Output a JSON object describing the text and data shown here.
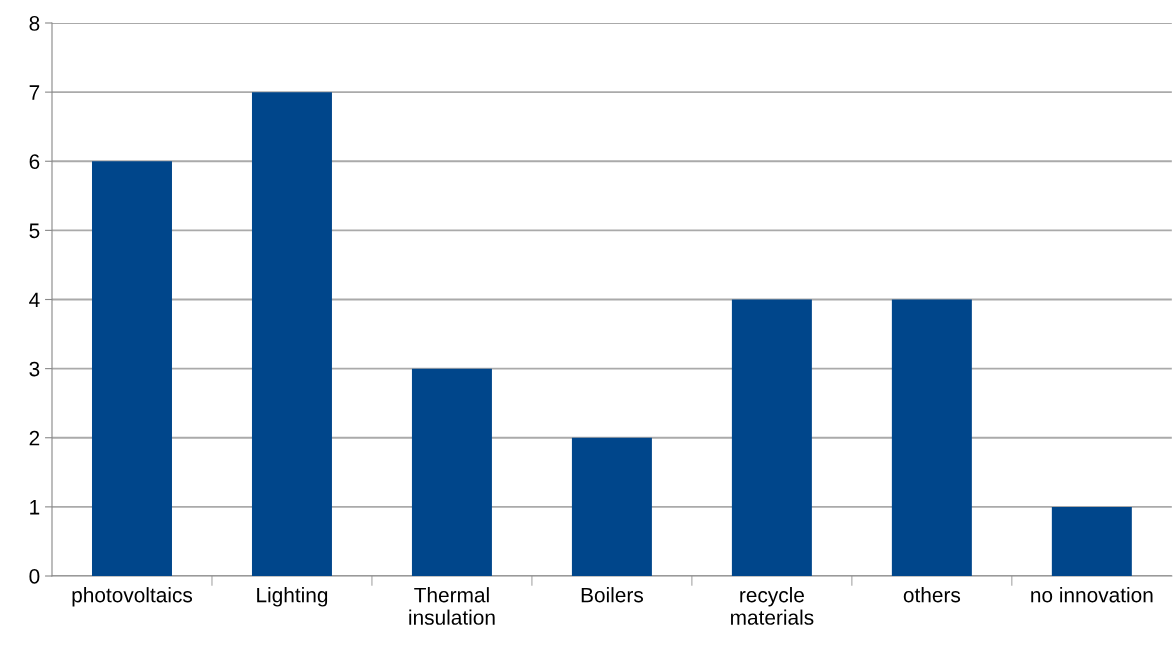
{
  "chart_data": {
    "type": "bar",
    "categories": [
      "photovoltaics",
      "Lighting",
      "Thermal\ninsulation",
      "Boilers",
      "recycle\nmaterials",
      "others",
      "no innovation"
    ],
    "values": [
      6,
      7,
      3,
      2,
      4,
      4,
      1
    ],
    "color": "#00468b",
    "ylim": [
      0,
      8
    ],
    "yticks": [
      0,
      1,
      2,
      3,
      4,
      5,
      6,
      7,
      8
    ],
    "grid": "y",
    "legend": false
  }
}
